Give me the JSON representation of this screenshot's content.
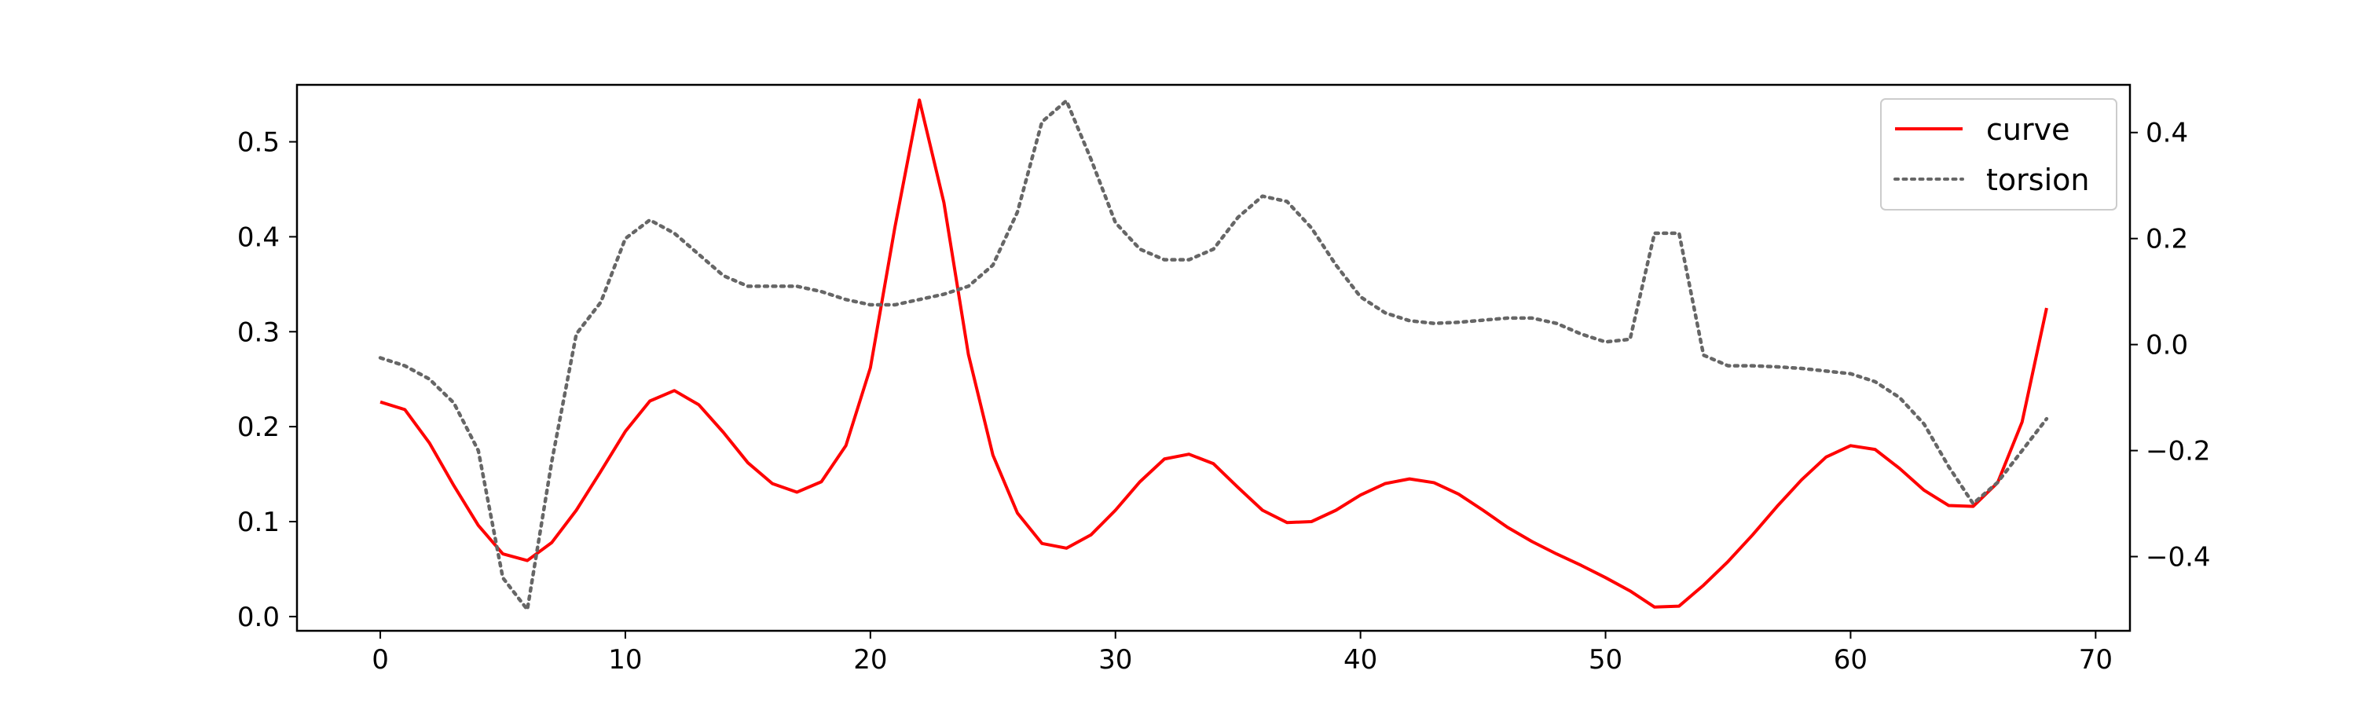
{
  "chart_data": {
    "type": "line",
    "title": "",
    "xlabel": "",
    "ylabel": "",
    "y2label": "",
    "grid": false,
    "legend_position": "top-right",
    "xlim": [
      -3.4,
      71.4
    ],
    "ylim": [
      -0.015,
      0.56
    ],
    "y2lim": [
      -0.54,
      0.49
    ],
    "xticks": [
      0,
      10,
      20,
      30,
      40,
      50,
      60,
      70
    ],
    "yticks": [
      0.0,
      0.1,
      0.2,
      0.3,
      0.4,
      0.5
    ],
    "y2ticks": [
      -0.4,
      -0.2,
      0.0,
      0.2,
      0.4
    ],
    "xtick_labels": [
      "0",
      "10",
      "20",
      "30",
      "40",
      "50",
      "60",
      "70"
    ],
    "ytick_labels": [
      "0.0",
      "0.1",
      "0.2",
      "0.3",
      "0.4",
      "0.5"
    ],
    "y2tick_labels": [
      "−0.4",
      "−0.2",
      "0.0",
      "0.2",
      "0.4"
    ],
    "x": [
      0,
      1,
      2,
      3,
      4,
      5,
      6,
      7,
      8,
      9,
      10,
      11,
      12,
      13,
      14,
      15,
      16,
      17,
      18,
      19,
      20,
      21,
      22,
      23,
      24,
      25,
      26,
      27,
      28,
      29,
      30,
      31,
      32,
      33,
      34,
      35,
      36,
      37,
      38,
      39,
      40,
      41,
      42,
      43,
      44,
      45,
      46,
      47,
      48,
      49,
      50,
      51,
      52,
      53,
      54,
      55,
      56,
      57,
      58,
      59,
      60,
      61,
      62,
      63,
      64,
      65,
      66,
      67,
      68
    ],
    "series": [
      {
        "name": "curve",
        "axis": "left",
        "color": "#ff0000",
        "style": "solid",
        "values": [
          0.226,
          0.218,
          0.183,
          0.138,
          0.096,
          0.066,
          0.059,
          0.078,
          0.112,
          0.153,
          0.195,
          0.227,
          0.238,
          0.223,
          0.194,
          0.162,
          0.14,
          0.131,
          0.142,
          0.18,
          0.262,
          0.41,
          0.544,
          0.436,
          0.276,
          0.17,
          0.109,
          0.077,
          0.072,
          0.086,
          0.112,
          0.142,
          0.166,
          0.171,
          0.161,
          0.136,
          0.112,
          0.099,
          0.1,
          0.112,
          0.128,
          0.14,
          0.145,
          0.141,
          0.129,
          0.112,
          0.094,
          0.079,
          0.066,
          0.054,
          0.041,
          0.027,
          0.01,
          0.011,
          0.033,
          0.058,
          0.086,
          0.116,
          0.144,
          0.168,
          0.18,
          0.176,
          0.156,
          0.133,
          0.117,
          0.116,
          0.141,
          0.205,
          0.325
        ]
      },
      {
        "name": "torsion",
        "axis": "right",
        "color": "#666666",
        "style": "dotted",
        "values": [
          -0.025,
          -0.04,
          -0.065,
          -0.11,
          -0.2,
          -0.44,
          -0.5,
          -0.22,
          0.02,
          0.08,
          0.2,
          0.235,
          0.21,
          0.17,
          0.13,
          0.11,
          0.11,
          0.11,
          0.1,
          0.085,
          0.075,
          0.075,
          0.085,
          0.095,
          0.11,
          0.15,
          0.25,
          0.42,
          0.46,
          0.35,
          0.23,
          0.18,
          0.16,
          0.16,
          0.18,
          0.24,
          0.28,
          0.27,
          0.22,
          0.15,
          0.09,
          0.06,
          0.045,
          0.04,
          0.042,
          0.046,
          0.05,
          0.05,
          0.04,
          0.02,
          0.005,
          0.01,
          0.21,
          0.21,
          -0.02,
          -0.04,
          -0.04,
          -0.042,
          -0.045,
          -0.05,
          -0.055,
          -0.07,
          -0.1,
          -0.15,
          -0.23,
          -0.3,
          -0.26,
          -0.2,
          -0.14
        ]
      }
    ]
  }
}
